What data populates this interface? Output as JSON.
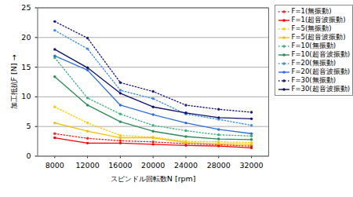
{
  "chart_data": {
    "type": "line",
    "x_label": "スピンドル回転数N [rpm]",
    "y_label": "加工抵抗F [N]",
    "categories": [
      8000,
      12000,
      16000,
      20000,
      24000,
      28000,
      32000
    ],
    "ylim": [
      0,
      25
    ],
    "yticks": [
      0,
      5,
      10,
      15,
      20,
      25
    ],
    "grid": true,
    "legend": "right",
    "series": [
      {
        "name": "F=1(無振動)",
        "color": "#ff2020",
        "line_style": "dotted",
        "marker": "circle",
        "values": [
          3.8,
          3.0,
          2.6,
          2.4,
          2.1,
          1.9,
          1.7
        ]
      },
      {
        "name": "F=1(超音波振動)",
        "color": "#ff0000",
        "line_style": "solid",
        "marker": "circle",
        "values": [
          3.1,
          2.2,
          2.2,
          2.0,
          1.8,
          1.7,
          1.4
        ]
      },
      {
        "name": "F=5(無振動)",
        "color": "#ffcc00",
        "line_style": "dotted",
        "marker": "circle",
        "values": [
          8.3,
          5.6,
          3.5,
          3.2,
          2.5,
          2.4,
          2.3
        ]
      },
      {
        "name": "F=5(超音波振動)",
        "color": "#f5c000",
        "line_style": "solid",
        "marker": "circle",
        "values": [
          5.6,
          4.2,
          3.1,
          3.1,
          2.3,
          2.1,
          2.0
        ]
      },
      {
        "name": "F=10(無振動)",
        "color": "#40b080",
        "line_style": "dotted",
        "marker": "circle",
        "values": [
          16.6,
          9.8,
          7.1,
          5.2,
          4.3,
          3.6,
          3.4
        ]
      },
      {
        "name": "F=10(超音波振動)",
        "color": "#2e8b57",
        "line_style": "solid",
        "marker": "circle",
        "values": [
          13.4,
          8.6,
          5.8,
          4.2,
          3.3,
          2.9,
          2.8
        ]
      },
      {
        "name": "F=20(無振動)",
        "color": "#3a8ee8",
        "line_style": "dotted",
        "marker": "circle",
        "values": [
          21.2,
          18.1,
          11.1,
          9.7,
          7.1,
          6.2,
          5.2
        ]
      },
      {
        "name": "F=20(超音波振動)",
        "color": "#2f6fe0",
        "line_style": "solid",
        "marker": "circle",
        "values": [
          16.9,
          14.5,
          8.6,
          7.0,
          5.6,
          4.5,
          3.8
        ]
      },
      {
        "name": "F=30(無振動)",
        "color": "#1a1a80",
        "line_style": "dotted",
        "marker": "circle",
        "values": [
          22.7,
          19.9,
          12.4,
          10.9,
          8.6,
          7.9,
          7.4
        ]
      },
      {
        "name": "F=30(超音波振動)",
        "color": "#101070",
        "line_style": "solid",
        "marker": "circle",
        "values": [
          18.0,
          14.9,
          10.6,
          8.3,
          7.3,
          6.5,
          6.3
        ]
      }
    ]
  }
}
